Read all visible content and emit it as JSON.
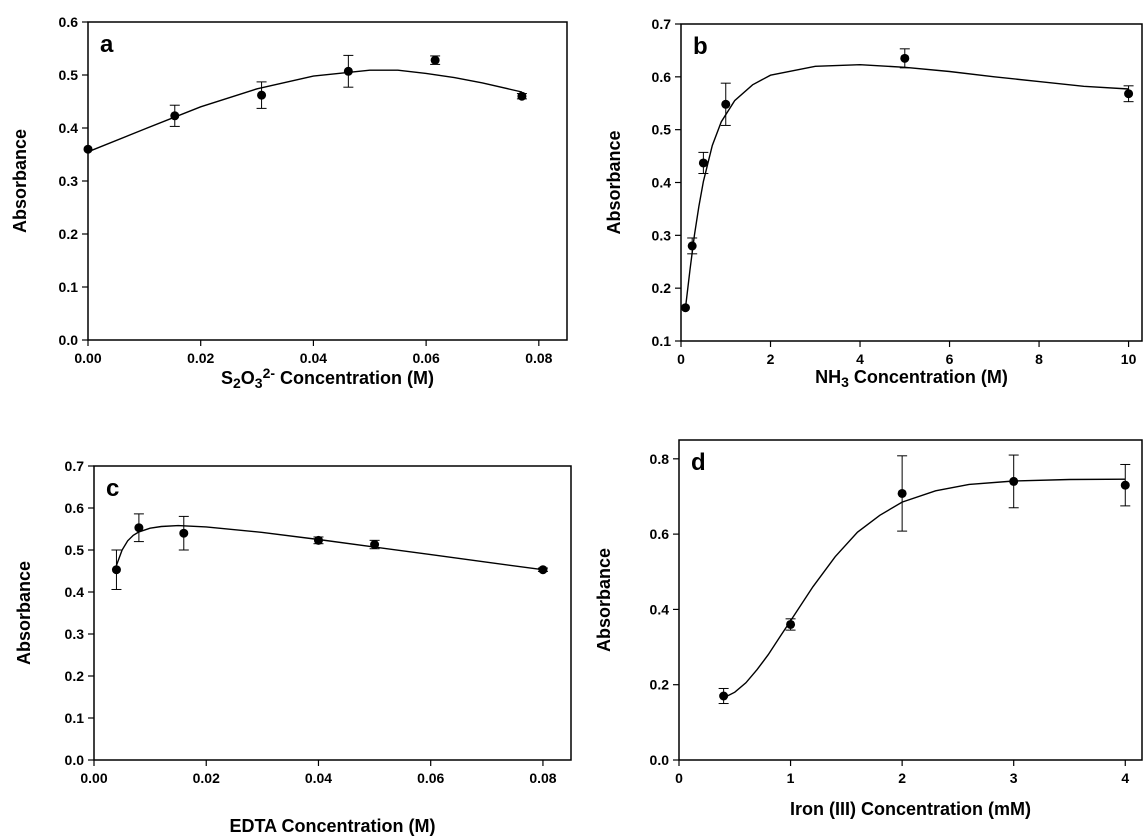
{
  "chart_data": [
    {
      "type": "scatter",
      "panel_label": "a",
      "xlabel_parts": [
        {
          "text": "S",
          "baseline": "normal"
        },
        {
          "text": "2",
          "baseline": "sub"
        },
        {
          "text": "O",
          "baseline": "normal"
        },
        {
          "text": "3",
          "baseline": "sub"
        },
        {
          "text": "2-",
          "baseline": "super"
        },
        {
          "text": " Concentration  (M)",
          "baseline": "normal"
        }
      ],
      "ylabel": "Absorbance",
      "xlim": [
        0,
        0.085
      ],
      "ylim": [
        0,
        0.6
      ],
      "xticks": [
        {
          "v": 0,
          "label": "0.00"
        },
        {
          "v": 0.02,
          "label": "0.02"
        },
        {
          "v": 0.04,
          "label": "0.04"
        },
        {
          "v": 0.06,
          "label": "0.06"
        },
        {
          "v": 0.08,
          "label": "0.08"
        }
      ],
      "yticks": [
        {
          "v": 0,
          "label": "0.0"
        },
        {
          "v": 0.1,
          "label": "0.1"
        },
        {
          "v": 0.2,
          "label": "0.2"
        },
        {
          "v": 0.3,
          "label": "0.3"
        },
        {
          "v": 0.4,
          "label": "0.4"
        },
        {
          "v": 0.5,
          "label": "0.5"
        },
        {
          "v": 0.6,
          "label": "0.6"
        }
      ],
      "points": [
        {
          "x": 0.0,
          "y": 0.36,
          "err": 0.0
        },
        {
          "x": 0.0154,
          "y": 0.423,
          "err": 0.02
        },
        {
          "x": 0.0308,
          "y": 0.462,
          "err": 0.025
        },
        {
          "x": 0.0462,
          "y": 0.507,
          "err": 0.03
        },
        {
          "x": 0.0616,
          "y": 0.528,
          "err": 0.008
        },
        {
          "x": 0.077,
          "y": 0.46,
          "err": 0.005
        }
      ],
      "fit_curve": [
        {
          "x": 0.0,
          "y": 0.355
        },
        {
          "x": 0.01,
          "y": 0.398
        },
        {
          "x": 0.02,
          "y": 0.44
        },
        {
          "x": 0.03,
          "y": 0.474
        },
        {
          "x": 0.04,
          "y": 0.498
        },
        {
          "x": 0.05,
          "y": 0.509
        },
        {
          "x": 0.055,
          "y": 0.509
        },
        {
          "x": 0.06,
          "y": 0.503
        },
        {
          "x": 0.065,
          "y": 0.495
        },
        {
          "x": 0.07,
          "y": 0.485
        },
        {
          "x": 0.077,
          "y": 0.468
        }
      ]
    },
    {
      "type": "scatter",
      "panel_label": "b",
      "xlabel_parts": [
        {
          "text": "NH",
          "baseline": "normal"
        },
        {
          "text": "3",
          "baseline": "sub"
        },
        {
          "text": " Concentration (M)",
          "baseline": "normal"
        }
      ],
      "ylabel": "Absorbance",
      "xlim": [
        0,
        10.3
      ],
      "ylim": [
        0.1,
        0.7
      ],
      "xticks": [
        {
          "v": 0,
          "label": "0"
        },
        {
          "v": 2,
          "label": "2"
        },
        {
          "v": 4,
          "label": "4"
        },
        {
          "v": 6,
          "label": "6"
        },
        {
          "v": 8,
          "label": "8"
        },
        {
          "v": 10,
          "label": "10"
        }
      ],
      "yticks": [
        {
          "v": 0.1,
          "label": "0.1"
        },
        {
          "v": 0.2,
          "label": "0.2"
        },
        {
          "v": 0.3,
          "label": "0.3"
        },
        {
          "v": 0.4,
          "label": "0.4"
        },
        {
          "v": 0.5,
          "label": "0.5"
        },
        {
          "v": 0.6,
          "label": "0.6"
        },
        {
          "v": 0.7,
          "label": "0.7"
        }
      ],
      "points": [
        {
          "x": 0.1,
          "y": 0.163,
          "err": 0.0
        },
        {
          "x": 0.25,
          "y": 0.28,
          "err": 0.015
        },
        {
          "x": 0.5,
          "y": 0.437,
          "err": 0.02
        },
        {
          "x": 1.0,
          "y": 0.548,
          "err": 0.04
        },
        {
          "x": 5.0,
          "y": 0.635,
          "err": 0.018
        },
        {
          "x": 10.0,
          "y": 0.568,
          "err": 0.015
        }
      ],
      "fit_curve": [
        {
          "x": 0.1,
          "y": 0.163
        },
        {
          "x": 0.2,
          "y": 0.235
        },
        {
          "x": 0.3,
          "y": 0.3
        },
        {
          "x": 0.4,
          "y": 0.355
        },
        {
          "x": 0.5,
          "y": 0.402
        },
        {
          "x": 0.7,
          "y": 0.47
        },
        {
          "x": 0.9,
          "y": 0.515
        },
        {
          "x": 1.2,
          "y": 0.555
        },
        {
          "x": 1.6,
          "y": 0.585
        },
        {
          "x": 2.0,
          "y": 0.603
        },
        {
          "x": 3.0,
          "y": 0.62
        },
        {
          "x": 4.0,
          "y": 0.623
        },
        {
          "x": 5.0,
          "y": 0.618
        },
        {
          "x": 6.0,
          "y": 0.61
        },
        {
          "x": 7.0,
          "y": 0.6
        },
        {
          "x": 8.0,
          "y": 0.591
        },
        {
          "x": 9.0,
          "y": 0.582
        },
        {
          "x": 10.0,
          "y": 0.577
        }
      ]
    },
    {
      "type": "scatter",
      "panel_label": "c",
      "xlabel_parts": [
        {
          "text": "EDTA Concentration  (M)",
          "baseline": "normal"
        }
      ],
      "ylabel": "Absorbance",
      "xlim": [
        0,
        0.085
      ],
      "ylim": [
        0,
        0.7
      ],
      "xticks": [
        {
          "v": 0,
          "label": "0.00"
        },
        {
          "v": 0.02,
          "label": "0.02"
        },
        {
          "v": 0.04,
          "label": "0.04"
        },
        {
          "v": 0.06,
          "label": "0.06"
        },
        {
          "v": 0.08,
          "label": "0.08"
        }
      ],
      "yticks": [
        {
          "v": 0,
          "label": "0.0"
        },
        {
          "v": 0.1,
          "label": "0.1"
        },
        {
          "v": 0.2,
          "label": "0.2"
        },
        {
          "v": 0.3,
          "label": "0.3"
        },
        {
          "v": 0.4,
          "label": "0.4"
        },
        {
          "v": 0.5,
          "label": "0.5"
        },
        {
          "v": 0.6,
          "label": "0.6"
        },
        {
          "v": 0.7,
          "label": "0.7"
        }
      ],
      "points": [
        {
          "x": 0.004,
          "y": 0.453,
          "err": 0.047
        },
        {
          "x": 0.008,
          "y": 0.553,
          "err": 0.033
        },
        {
          "x": 0.016,
          "y": 0.54,
          "err": 0.04
        },
        {
          "x": 0.04,
          "y": 0.523,
          "err": 0.008
        },
        {
          "x": 0.05,
          "y": 0.513,
          "err": 0.01
        },
        {
          "x": 0.08,
          "y": 0.453,
          "err": 0.004
        }
      ],
      "fit_curve": [
        {
          "x": 0.004,
          "y": 0.463
        },
        {
          "x": 0.005,
          "y": 0.5
        },
        {
          "x": 0.006,
          "y": 0.522
        },
        {
          "x": 0.007,
          "y": 0.535
        },
        {
          "x": 0.008,
          "y": 0.543
        },
        {
          "x": 0.01,
          "y": 0.552
        },
        {
          "x": 0.012,
          "y": 0.556
        },
        {
          "x": 0.015,
          "y": 0.558
        },
        {
          "x": 0.02,
          "y": 0.555
        },
        {
          "x": 0.03,
          "y": 0.542
        },
        {
          "x": 0.04,
          "y": 0.525
        },
        {
          "x": 0.05,
          "y": 0.507
        },
        {
          "x": 0.06,
          "y": 0.489
        },
        {
          "x": 0.07,
          "y": 0.471
        },
        {
          "x": 0.08,
          "y": 0.453
        }
      ]
    },
    {
      "type": "scatter",
      "panel_label": "d",
      "xlabel_parts": [
        {
          "text": "Iron (III) Concentration (mM)",
          "baseline": "normal"
        }
      ],
      "ylabel": "Absorbance",
      "xlim": [
        0,
        4.15
      ],
      "ylim": [
        0,
        0.85
      ],
      "xticks": [
        {
          "v": 0,
          "label": "0"
        },
        {
          "v": 1,
          "label": "1"
        },
        {
          "v": 2,
          "label": "2"
        },
        {
          "v": 3,
          "label": "3"
        },
        {
          "v": 4,
          "label": "4"
        }
      ],
      "yticks": [
        {
          "v": 0,
          "label": "0.0"
        },
        {
          "v": 0.2,
          "label": "0.2"
        },
        {
          "v": 0.4,
          "label": "0.4"
        },
        {
          "v": 0.6,
          "label": "0.6"
        },
        {
          "v": 0.8,
          "label": "0.8"
        }
      ],
      "points": [
        {
          "x": 0.4,
          "y": 0.17,
          "err": 0.02
        },
        {
          "x": 1.0,
          "y": 0.36,
          "err": 0.015
        },
        {
          "x": 2.0,
          "y": 0.708,
          "err": 0.1
        },
        {
          "x": 3.0,
          "y": 0.74,
          "err": 0.07
        },
        {
          "x": 4.0,
          "y": 0.73,
          "err": 0.055
        }
      ],
      "fit_curve": [
        {
          "x": 0.4,
          "y": 0.165
        },
        {
          "x": 0.5,
          "y": 0.18
        },
        {
          "x": 0.6,
          "y": 0.205
        },
        {
          "x": 0.7,
          "y": 0.24
        },
        {
          "x": 0.8,
          "y": 0.28
        },
        {
          "x": 0.9,
          "y": 0.325
        },
        {
          "x": 1.0,
          "y": 0.37
        },
        {
          "x": 1.2,
          "y": 0.46
        },
        {
          "x": 1.4,
          "y": 0.54
        },
        {
          "x": 1.6,
          "y": 0.605
        },
        {
          "x": 1.8,
          "y": 0.65
        },
        {
          "x": 2.0,
          "y": 0.685
        },
        {
          "x": 2.3,
          "y": 0.715
        },
        {
          "x": 2.6,
          "y": 0.732
        },
        {
          "x": 3.0,
          "y": 0.741
        },
        {
          "x": 3.5,
          "y": 0.745
        },
        {
          "x": 4.0,
          "y": 0.746
        }
      ]
    }
  ]
}
